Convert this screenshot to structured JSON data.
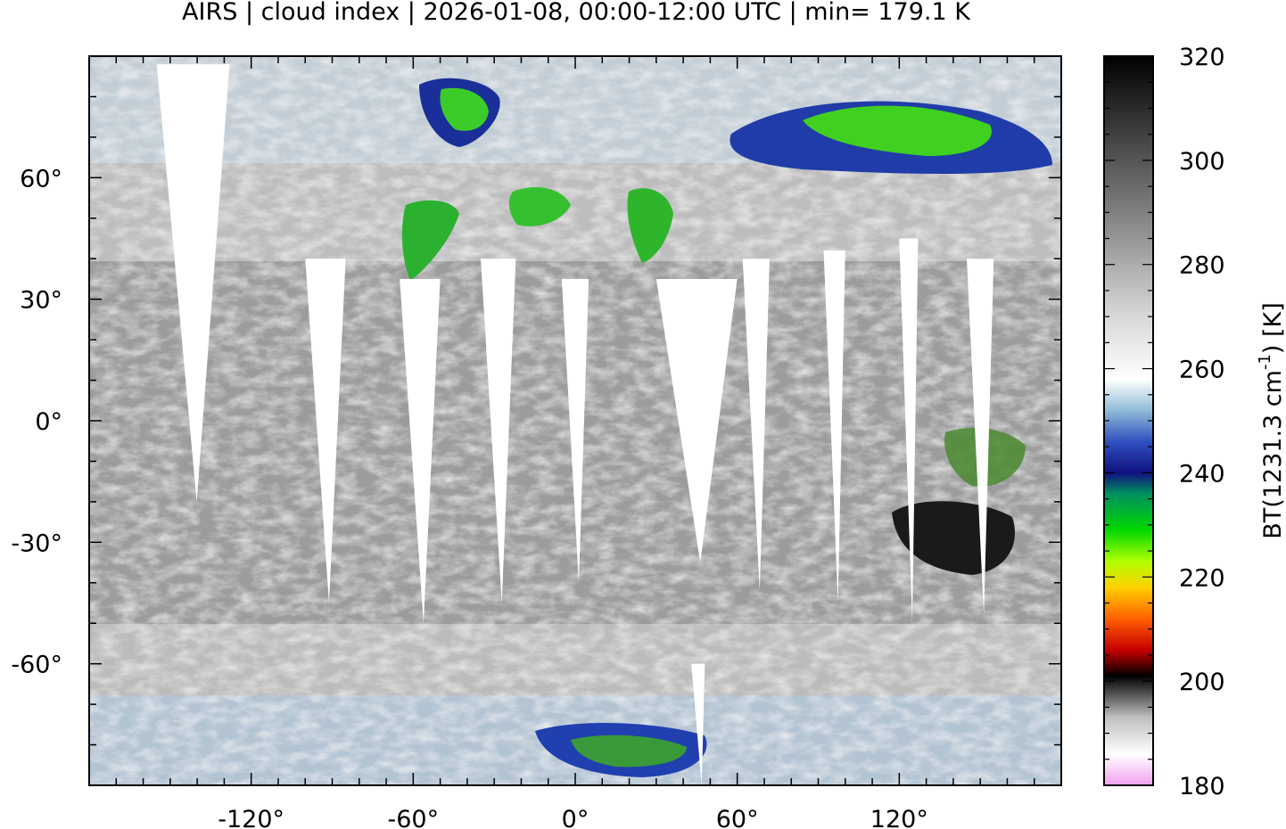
{
  "title": "AIRS | cloud index | 2026-01-08, 00:00-12:00 UTC | min= 179.1 K",
  "map": {
    "projection": "equirectangular",
    "lon_range": [
      -180,
      180
    ],
    "lat_range": [
      -90,
      90
    ],
    "lon_ticks": [
      {
        "value": -120,
        "label": "-120°"
      },
      {
        "value": -60,
        "label": "-60°"
      },
      {
        "value": 0,
        "label": "0°"
      },
      {
        "value": 60,
        "label": "60°"
      },
      {
        "value": 120,
        "label": "120°"
      }
    ],
    "lat_ticks": [
      {
        "value": 60,
        "label": "60°"
      },
      {
        "value": 30,
        "label": "30°"
      },
      {
        "value": 0,
        "label": "0°"
      },
      {
        "value": -30,
        "label": "-30°"
      },
      {
        "value": -60,
        "label": "-60°"
      }
    ],
    "field_background": "#9c9c9c",
    "swath_gap_color": "#ffffff",
    "coastline_color": "#c8c8c8"
  },
  "colorbar": {
    "min": 180,
    "max": 320,
    "ticks": [
      {
        "value": 320,
        "label": "320"
      },
      {
        "value": 300,
        "label": "300"
      },
      {
        "value": 280,
        "label": "280"
      },
      {
        "value": 260,
        "label": "260"
      },
      {
        "value": 240,
        "label": "240"
      },
      {
        "value": 220,
        "label": "220"
      },
      {
        "value": 200,
        "label": "200"
      },
      {
        "value": 180,
        "label": "180"
      }
    ],
    "label_parts": {
      "pre": "BT(1231.3 cm",
      "sup": "-1",
      "post": ") [K]"
    },
    "stops": [
      {
        "value": 180,
        "color": "#f0a0f0"
      },
      {
        "value": 186,
        "color": "#ffffff"
      },
      {
        "value": 193,
        "color": "#c0c0c0"
      },
      {
        "value": 199,
        "color": "#303030"
      },
      {
        "value": 201,
        "color": "#000000"
      },
      {
        "value": 206,
        "color": "#c80000"
      },
      {
        "value": 212,
        "color": "#ff6000"
      },
      {
        "value": 218,
        "color": "#ffd000"
      },
      {
        "value": 223,
        "color": "#b0ff00"
      },
      {
        "value": 229,
        "color": "#00d800"
      },
      {
        "value": 236,
        "color": "#009060"
      },
      {
        "value": 240,
        "color": "#101080"
      },
      {
        "value": 246,
        "color": "#3050c0"
      },
      {
        "value": 252,
        "color": "#90bcd8"
      },
      {
        "value": 258,
        "color": "#ffffff"
      },
      {
        "value": 270,
        "color": "#d8d8d8"
      },
      {
        "value": 290,
        "color": "#808080"
      },
      {
        "value": 320,
        "color": "#000000"
      }
    ]
  }
}
